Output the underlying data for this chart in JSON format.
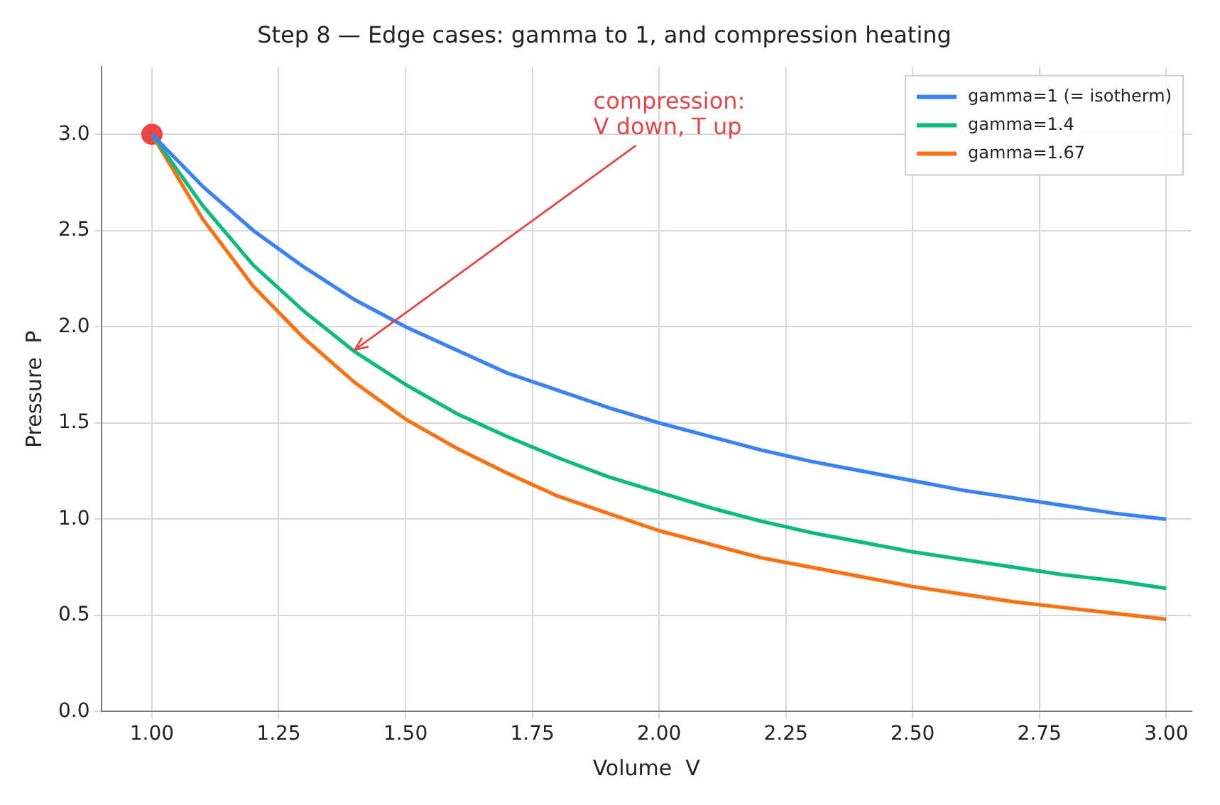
{
  "chart_data": {
    "type": "line",
    "title": "Step 8 — Edge cases: gamma to 1, and compression heating",
    "xlabel": "Volume  V",
    "ylabel": "Pressure  P",
    "x": [
      1.0,
      1.1,
      1.2,
      1.3,
      1.4,
      1.5,
      1.6,
      1.7,
      1.8,
      1.9,
      2.0,
      2.1,
      2.2,
      2.3,
      2.4,
      2.5,
      2.6,
      2.7,
      2.8,
      2.9,
      3.0
    ],
    "series": [
      {
        "name": "gamma=1 (= isotherm)",
        "color": "#3b82f6",
        "values": [
          3.0,
          2.73,
          2.5,
          2.31,
          2.14,
          2.0,
          1.88,
          1.76,
          1.67,
          1.58,
          1.5,
          1.43,
          1.36,
          1.3,
          1.25,
          1.2,
          1.15,
          1.11,
          1.07,
          1.03,
          1.0
        ]
      },
      {
        "name": "gamma=1.4",
        "color": "#10b981",
        "values": [
          3.0,
          2.63,
          2.32,
          2.08,
          1.87,
          1.7,
          1.55,
          1.43,
          1.32,
          1.22,
          1.14,
          1.06,
          0.99,
          0.93,
          0.88,
          0.83,
          0.79,
          0.75,
          0.71,
          0.68,
          0.64
        ]
      },
      {
        "name": "gamma=1.67",
        "color": "#f97316",
        "values": [
          3.0,
          2.56,
          2.21,
          1.94,
          1.71,
          1.52,
          1.37,
          1.24,
          1.12,
          1.03,
          0.94,
          0.87,
          0.8,
          0.75,
          0.7,
          0.65,
          0.61,
          0.57,
          0.54,
          0.51,
          0.48
        ]
      },
      {
        "type": "scatter",
        "color": "#ef4444",
        "marker": "circle",
        "x": [
          1.0
        ],
        "values": [
          3.0
        ]
      }
    ],
    "annotations": [
      {
        "text": "compression:\nV down, T up",
        "x": 1.4,
        "y": 1.88
      }
    ],
    "xlim": [
      0.9,
      3.05
    ],
    "ylim": [
      0,
      3.35
    ],
    "xticks": [
      {
        "value": 1,
        "label": "1.00"
      },
      {
        "value": 1.25,
        "label": "1.25"
      },
      {
        "value": 1.5,
        "label": "1.50"
      },
      {
        "value": 1.75,
        "label": "1.75"
      },
      {
        "value": 2,
        "label": "2.00"
      },
      {
        "value": 2.25,
        "label": "2.25"
      },
      {
        "value": 2.5,
        "label": "2.50"
      },
      {
        "value": 2.75,
        "label": "2.75"
      },
      {
        "value": 3,
        "label": "3.00"
      }
    ],
    "yticks": [
      {
        "value": 0,
        "label": "0.0"
      },
      {
        "value": 0.5,
        "label": "0.5"
      },
      {
        "value": 1,
        "label": "1.0"
      },
      {
        "value": 1.5,
        "label": "1.5"
      },
      {
        "value": 2,
        "label": "2.0"
      },
      {
        "value": 2.5,
        "label": "2.5"
      },
      {
        "value": 3,
        "label": "3.0"
      }
    ],
    "grid": true,
    "legend": "top right",
    "marker": "none",
    "line_style": "solid"
  }
}
